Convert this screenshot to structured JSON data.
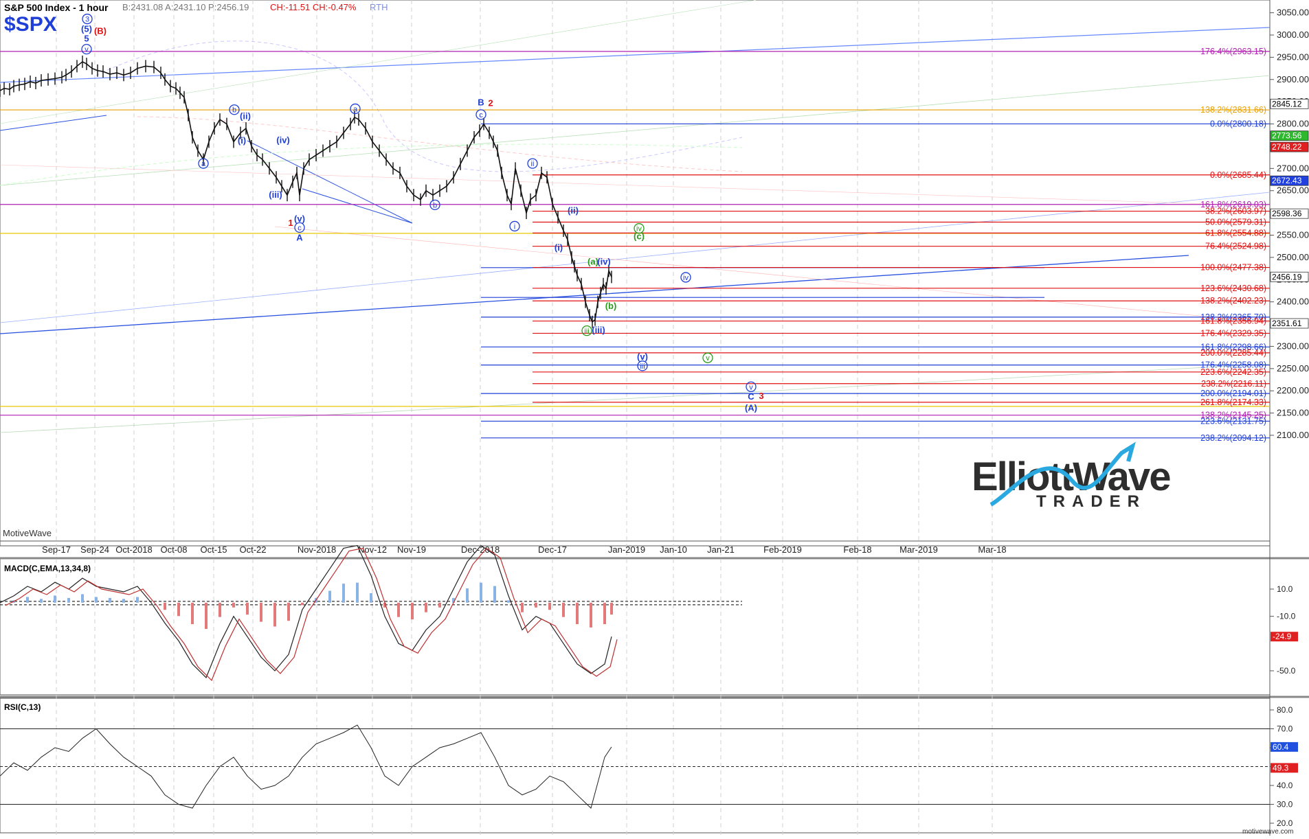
{
  "header": {
    "title": "S&P 500 Index - 1 hour",
    "symbol": "$SPX",
    "quote": "B:2431.08 A:2431.10 P:2456.19",
    "change": "CH:-11.51 CH:-0.47%",
    "session": "RTH"
  },
  "watermark": "MotiveWave",
  "footer_url": "motivewave.com",
  "logo": {
    "line1": "ElliottWave",
    "line2": "TRADER"
  },
  "colors": {
    "blue": "#1f3fd6",
    "red": "#e01010",
    "green": "#2a9a1a",
    "purple": "#b020b0",
    "yellow": "#e8c800",
    "orange": "#e8a000"
  },
  "chart_data": [
    {
      "type": "line",
      "name": "price",
      "xaxis": {
        "labels": [
          "Sep-17",
          "Sep-24",
          "Oct-2018",
          "Oct-08",
          "Oct-15",
          "Oct-22",
          "Nov-2018",
          "Nov-12",
          "Nov-19",
          "Dec-2018",
          "Dec-17",
          "Jan-2019",
          "Jan-10",
          "Jan-21",
          "Feb-2019",
          "Feb-18",
          "Mar-2019",
          "Mar-18"
        ]
      },
      "yaxis": {
        "ticks": [
          3050,
          3000,
          2950,
          2900,
          2850,
          2800,
          2750,
          2700,
          2650,
          2600,
          2550,
          2500,
          2450,
          2400,
          2350,
          2300,
          2250,
          2200,
          2150,
          2100
        ],
        "ylim": [
          2080,
          3065
        ]
      },
      "x": [
        0,
        6,
        14,
        20,
        28,
        36,
        44,
        52,
        60,
        70,
        80,
        90,
        96,
        104,
        112,
        120,
        126,
        134,
        142,
        150,
        160,
        170,
        180,
        190,
        200,
        212,
        224,
        234,
        240,
        248,
        256,
        262,
        268,
        274,
        280,
        288,
        296,
        304,
        312,
        320,
        330,
        340,
        350,
        358,
        366,
        374,
        382,
        392,
        402,
        410,
        418,
        426,
        432,
        436,
        442,
        450,
        460,
        470,
        480,
        490,
        500,
        510,
        516,
        522,
        532,
        542,
        552,
        562,
        572,
        582,
        592,
        602,
        612,
        620,
        630,
        640,
        650,
        660,
        670,
        680,
        690,
        698,
        704,
        712,
        718,
        724,
        730,
        738,
        744,
        750,
        758,
        766,
        772,
        780,
        788,
        796,
        804,
        812,
        820,
        826,
        832,
        836,
        840,
        846,
        852,
        858,
        862,
        866,
        870,
        874,
        878,
        882,
        886,
        890
      ],
      "y": [
        2875,
        2880,
        2878,
        2885,
        2888,
        2890,
        2895,
        2892,
        2898,
        2900,
        2902,
        2905,
        2910,
        2918,
        2930,
        2940,
        2935,
        2925,
        2920,
        2918,
        2912,
        2915,
        2910,
        2915,
        2925,
        2930,
        2928,
        2915,
        2900,
        2885,
        2880,
        2870,
        2860,
        2820,
        2770,
        2740,
        2720,
        2760,
        2790,
        2810,
        2800,
        2760,
        2780,
        2790,
        2750,
        2730,
        2720,
        2700,
        2680,
        2660,
        2640,
        2670,
        2690,
        2640,
        2700,
        2720,
        2730,
        2740,
        2750,
        2760,
        2780,
        2800,
        2815,
        2810,
        2790,
        2760,
        2740,
        2720,
        2700,
        2690,
        2660,
        2640,
        2630,
        2650,
        2640,
        2650,
        2660,
        2680,
        2710,
        2740,
        2770,
        2785,
        2800,
        2780,
        2760,
        2740,
        2690,
        2640,
        2620,
        2700,
        2650,
        2600,
        2630,
        2640,
        2690,
        2680,
        2620,
        2590,
        2560,
        2540,
        2500,
        2480,
        2460,
        2440,
        2400,
        2370,
        2355,
        2360,
        2400,
        2420,
        2440,
        2430,
        2470,
        2456
      ]
    },
    {
      "type": "line",
      "name": "MACD(C,EMA,13,34,8)",
      "yaxis": {
        "ticks": [
          10.0,
          -10.0,
          -50.0
        ],
        "ylim": [
          -75,
          50
        ]
      },
      "last_value": "-24.9",
      "x": [
        0,
        20,
        40,
        60,
        80,
        100,
        120,
        140,
        160,
        180,
        200,
        220,
        240,
        260,
        280,
        300,
        320,
        340,
        360,
        380,
        400,
        420,
        440,
        460,
        480,
        500,
        520,
        540,
        560,
        580,
        600,
        620,
        640,
        660,
        680,
        700,
        720,
        740,
        760,
        780,
        800,
        820,
        840,
        860,
        880,
        890
      ],
      "y": [
        0,
        5,
        12,
        8,
        15,
        10,
        18,
        12,
        10,
        8,
        12,
        0,
        -15,
        -28,
        -45,
        -55,
        -30,
        -10,
        -25,
        -40,
        -50,
        -38,
        -5,
        10,
        25,
        40,
        42,
        20,
        -10,
        -30,
        -35,
        -20,
        -10,
        10,
        30,
        42,
        35,
        5,
        -20,
        -10,
        -15,
        -30,
        -45,
        -52,
        -45,
        -24.9
      ]
    },
    {
      "type": "line",
      "name": "RSI(C,13)",
      "yaxis": {
        "ticks": [
          80.0,
          70.0,
          60.0,
          50.0,
          40.0,
          30.0,
          20.0
        ],
        "ylim": [
          17,
          87
        ]
      },
      "last_value": "60.4",
      "signal_value": "49.3",
      "levels": [
        70,
        30
      ],
      "x": [
        0,
        20,
        40,
        60,
        80,
        100,
        120,
        140,
        160,
        180,
        200,
        220,
        240,
        260,
        280,
        300,
        320,
        340,
        360,
        380,
        400,
        420,
        440,
        460,
        480,
        500,
        520,
        540,
        560,
        580,
        600,
        620,
        640,
        660,
        680,
        700,
        720,
        740,
        760,
        780,
        800,
        820,
        840,
        860,
        880,
        890
      ],
      "y": [
        45,
        52,
        48,
        55,
        60,
        58,
        65,
        70,
        62,
        55,
        50,
        45,
        35,
        30,
        28,
        40,
        50,
        55,
        45,
        38,
        40,
        45,
        55,
        62,
        65,
        68,
        72,
        60,
        45,
        40,
        50,
        55,
        60,
        62,
        65,
        68,
        55,
        40,
        35,
        38,
        45,
        42,
        35,
        28,
        55,
        60.4
      ]
    }
  ],
  "price_badges": [
    {
      "value": "2845.12",
      "price": 2845.12,
      "color": "#ffffff",
      "text": "#000000"
    },
    {
      "value": "2773.56",
      "price": 2773.56,
      "color": "#2db82d",
      "text": "#ffffff"
    },
    {
      "value": "2748.22",
      "price": 2748.22,
      "color": "#e02020",
      "text": "#ffffff"
    },
    {
      "value": "2672.43",
      "price": 2672.43,
      "color": "#2040e0",
      "text": "#ffffff"
    },
    {
      "value": "2598.36",
      "price": 2598.36,
      "color": "#ffffff",
      "text": "#000000"
    },
    {
      "value": "2456.19",
      "price": 2456.19,
      "color": "#ffffff",
      "text": "#000000"
    },
    {
      "value": "2351.61",
      "price": 2351.61,
      "color": "#ffffff",
      "text": "#000000"
    }
  ],
  "fib_levels": [
    {
      "label": "176.4%(2963.15)",
      "price": 2963.15,
      "color": "#b020b0",
      "start": 0
    },
    {
      "label": "138.2%(2831.66)",
      "price": 2831.66,
      "color": "#e8a000",
      "start": 0
    },
    {
      "label": "0.0%(2800.18)",
      "price": 2800.18,
      "color": "#1f3fd6",
      "start": 700
    },
    {
      "label": "0.0%(2685.44)",
      "price": 2685.44,
      "color": "#e01010",
      "start": 775
    },
    {
      "label": "161.8%(2619.03)",
      "price": 2619.03,
      "color": "#b020b0",
      "start": 0
    },
    {
      "label": "38.2%(2603.97)",
      "price": 2603.97,
      "color": "#e01010",
      "start": 775
    },
    {
      "label": "50.0%(2579.31)",
      "price": 2579.31,
      "color": "#e01010",
      "start": 775
    },
    {
      "label": "61.8%(2554.88)",
      "price": 2554.88,
      "color": "#e01010",
      "start": 775
    },
    {
      "label": "76.4%(2524.98)",
      "price": 2524.98,
      "color": "#e01010",
      "start": 775
    },
    {
      "label": "100.0%(2477.38)",
      "price": 2477.38,
      "color": "#e01010",
      "start": 775
    },
    {
      "label": "123.6%(2430.68)",
      "price": 2430.68,
      "color": "#e01010",
      "start": 775
    },
    {
      "label": "138.2%(2402.23)",
      "price": 2402.23,
      "color": "#e01010",
      "start": 775
    },
    {
      "label": "138.2%(2365.70)",
      "price": 2365.7,
      "color": "#1f3fd6",
      "start": 700
    },
    {
      "label": "161.8%(2356.94)",
      "price": 2356.94,
      "color": "#e01010",
      "start": 775
    },
    {
      "label": "176.4%(2329.35)",
      "price": 2329.35,
      "color": "#e01010",
      "start": 775
    },
    {
      "label": "161.8%(2298.66)",
      "price": 2298.66,
      "color": "#1f3fd6",
      "start": 700
    },
    {
      "label": "200.0%(2285.44)",
      "price": 2285.44,
      "color": "#e01010",
      "start": 775
    },
    {
      "label": "176.4%(2258.08)",
      "price": 2258.08,
      "color": "#1f3fd6",
      "start": 700
    },
    {
      "label": "223.6%(2242.35)",
      "price": 2242.35,
      "color": "#e01010",
      "start": 775
    },
    {
      "label": "238.2%(2216.11)",
      "price": 2216.11,
      "color": "#e01010",
      "start": 775
    },
    {
      "label": "200.0%(2194.01)",
      "price": 2194.01,
      "color": "#1f3fd6",
      "start": 700
    },
    {
      "label": "261.8%(2174.33)",
      "price": 2174.33,
      "color": "#e01010",
      "start": 775
    },
    {
      "label": "138.2%(2145.25)",
      "price": 2145.25,
      "color": "#b020b0",
      "start": 0
    },
    {
      "label": "223.6%(2131.75)",
      "price": 2131.75,
      "color": "#1f3fd6",
      "start": 700
    },
    {
      "label": "238.2%(2094.12)",
      "price": 2094.12,
      "color": "#1f3fd6",
      "start": 700
    }
  ],
  "extra_lines": [
    {
      "price": 2554.0,
      "color": "#e8c800"
    },
    {
      "price": 2165.0,
      "color": "#e8c800"
    },
    {
      "price": 2410.0,
      "color": "#1f3fd6",
      "start": 700,
      "end": 1520
    },
    {
      "price": 2477.0,
      "color": "#1f3fd6",
      "start": 700,
      "end": 1520
    }
  ],
  "wave_labels": [
    {
      "text": "3",
      "x": 127,
      "price": 3030,
      "color": "#1f3fd6",
      "circle": true
    },
    {
      "text": "(5)",
      "x": 126,
      "price": 3007,
      "color": "#1f3fd6"
    },
    {
      "text": "(B)",
      "x": 146,
      "price": 3002,
      "color": "#e01010"
    },
    {
      "text": "5",
      "x": 126,
      "price": 2985,
      "color": "#1f3fd6"
    },
    {
      "text": "v",
      "x": 126,
      "price": 2962,
      "color": "#1f3fd6",
      "circle": true
    },
    {
      "text": "a",
      "x": 296,
      "price": 2705,
      "color": "#1f3fd6",
      "circle": true
    },
    {
      "text": "b",
      "x": 341,
      "price": 2826,
      "color": "#1f3fd6",
      "circle": true
    },
    {
      "text": "(ii)",
      "x": 357,
      "price": 2811,
      "color": "#1f3fd6"
    },
    {
      "text": "(i)",
      "x": 352,
      "price": 2756,
      "color": "#1f3fd6"
    },
    {
      "text": "(iv)",
      "x": 412,
      "price": 2757,
      "color": "#1f3fd6"
    },
    {
      "text": "(iii)",
      "x": 401,
      "price": 2634,
      "color": "#1f3fd6"
    },
    {
      "text": "(v)",
      "x": 436,
      "price": 2580,
      "color": "#1f3fd6"
    },
    {
      "text": "1",
      "x": 423,
      "price": 2571,
      "color": "#e01010"
    },
    {
      "text": "c",
      "x": 436,
      "price": 2561,
      "color": "#1f3fd6",
      "circle": true
    },
    {
      "text": "A",
      "x": 436,
      "price": 2538,
      "color": "#1f3fd6"
    },
    {
      "text": "a",
      "x": 517,
      "price": 2828,
      "color": "#1f3fd6",
      "circle": true
    },
    {
      "text": "b",
      "x": 633,
      "price": 2612,
      "color": "#1f3fd6",
      "circle": true
    },
    {
      "text": "B",
      "x": 700,
      "price": 2842,
      "color": "#1f3fd6"
    },
    {
      "text": "2",
      "x": 714,
      "price": 2840,
      "color": "#e01010"
    },
    {
      "text": "c",
      "x": 700,
      "price": 2815,
      "color": "#1f3fd6",
      "circle": true
    },
    {
      "text": "ii",
      "x": 775,
      "price": 2705,
      "color": "#1f3fd6",
      "circle": true
    },
    {
      "text": "i",
      "x": 749,
      "price": 2564,
      "color": "#1f3fd6",
      "circle": true
    },
    {
      "text": "(ii)",
      "x": 834,
      "price": 2599,
      "color": "#1f3fd6"
    },
    {
      "text": "(i)",
      "x": 813,
      "price": 2515,
      "color": "#1f3fd6"
    },
    {
      "text": "iv",
      "x": 930,
      "price": 2559,
      "color": "#2a9a1a",
      "circle": true
    },
    {
      "text": "(c)",
      "x": 930,
      "price": 2541,
      "color": "#2a9a1a"
    },
    {
      "text": "(a)",
      "x": 863,
      "price": 2484,
      "color": "#2a9a1a"
    },
    {
      "text": "(iv)",
      "x": 879,
      "price": 2484,
      "color": "#1f3fd6"
    },
    {
      "text": "iv",
      "x": 998,
      "price": 2449,
      "color": "#1f3fd6",
      "circle": true
    },
    {
      "text": "(b)",
      "x": 889,
      "price": 2384,
      "color": "#2a9a1a"
    },
    {
      "text": "iii",
      "x": 854,
      "price": 2329,
      "color": "#2a9a1a",
      "circle": true
    },
    {
      "text": "(iii)",
      "x": 871,
      "price": 2330,
      "color": "#1f3fd6"
    },
    {
      "text": "(v)",
      "x": 935,
      "price": 2270,
      "color": "#1f3fd6"
    },
    {
      "text": "iii",
      "x": 935,
      "price": 2250,
      "color": "#1f3fd6",
      "circle": true
    },
    {
      "text": "v",
      "x": 1030,
      "price": 2268,
      "color": "#2a9a1a",
      "circle": true
    },
    {
      "text": "v",
      "x": 1093,
      "price": 2203,
      "color": "#1f3fd6",
      "circle": true
    },
    {
      "text": "C",
      "x": 1093,
      "price": 2180,
      "color": "#1f3fd6"
    },
    {
      "text": "3",
      "x": 1108,
      "price": 2182,
      "color": "#e01010"
    },
    {
      "text": "(A)",
      "x": 1093,
      "price": 2155,
      "color": "#1f3fd6"
    }
  ]
}
